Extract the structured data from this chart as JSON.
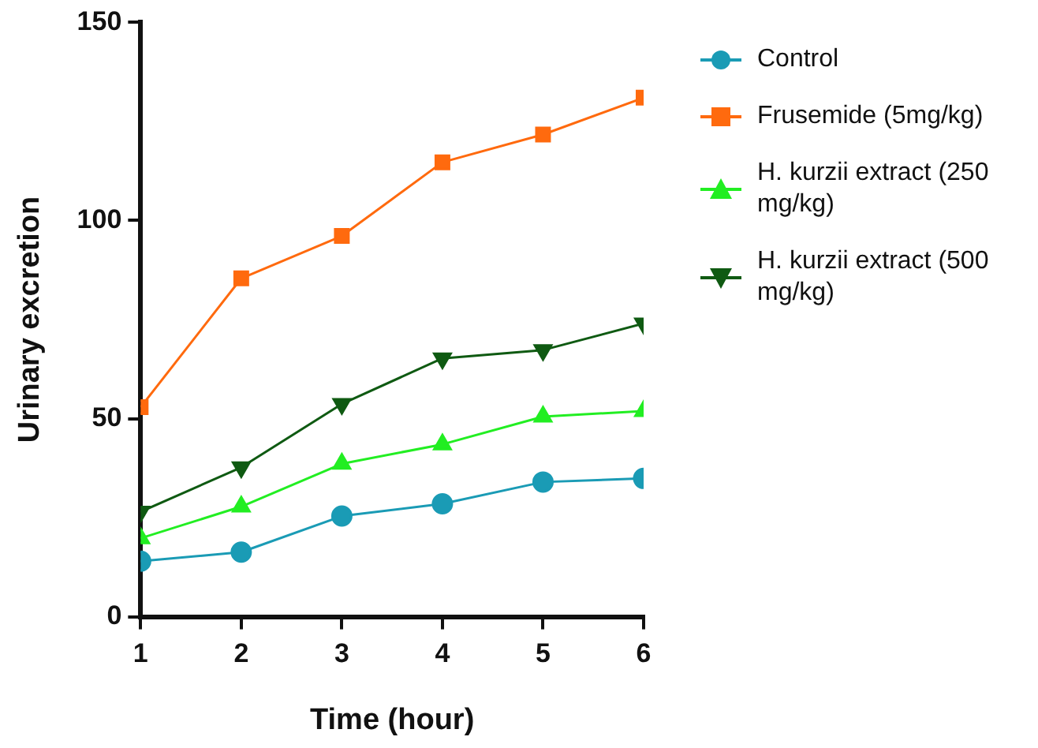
{
  "chart_data": {
    "type": "line",
    "xlabel": "Time (hour)",
    "ylabel": "Urinary excretion",
    "x": [
      1,
      2,
      3,
      4,
      5,
      6
    ],
    "xlim": [
      1,
      6
    ],
    "xticks": [
      1,
      2,
      3,
      4,
      5,
      6
    ],
    "ylim": [
      0,
      150
    ],
    "yticks": [
      0,
      50,
      100,
      150
    ],
    "grid": false,
    "legend": "right",
    "line_style": "solid",
    "series": [
      {
        "name": "Control",
        "color": "#1a9bb5",
        "marker": "circle",
        "values": [
          14.0,
          16.3,
          25.4,
          28.5,
          34.0,
          34.9
        ]
      },
      {
        "name": "Frusemide (5mg/kg)",
        "color": "#ff6a0e",
        "marker": "square",
        "values": [
          52.9,
          85.4,
          96.1,
          114.7,
          121.7,
          131.0
        ]
      },
      {
        "name": "H. kurzii extract (250 mg/kg)",
        "color": "#22ee22",
        "marker": "triangle",
        "values": [
          19.8,
          27.8,
          38.6,
          43.5,
          50.5,
          51.9
        ]
      },
      {
        "name": "H. kurzii extract (500 mg/kg)",
        "color": "#0f5a12",
        "marker": "triangle-down",
        "values": [
          26.5,
          37.7,
          53.7,
          65.2,
          67.3,
          74.0
        ]
      }
    ]
  }
}
